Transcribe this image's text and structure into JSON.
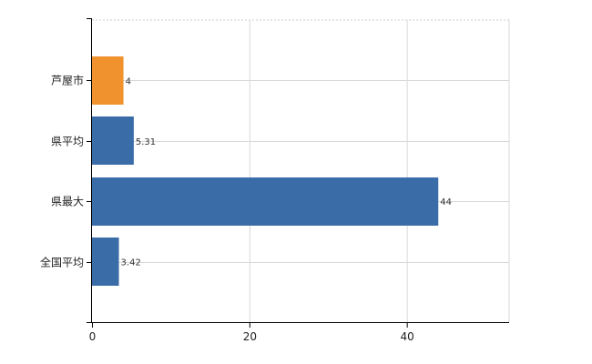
{
  "chart_data": {
    "type": "bar",
    "orientation": "horizontal",
    "categories": [
      "芦屋市",
      "県平均",
      "県最大",
      "全国平均"
    ],
    "values": [
      4,
      5.31,
      44,
      3.42
    ],
    "value_labels": [
      "4",
      "5.31",
      "44",
      "3.42"
    ],
    "bar_colors": [
      "#f0922e",
      "#3a6da8",
      "#3a6da8",
      "#3a6da8"
    ],
    "xlim": [
      0,
      53
    ],
    "xticks": [
      0,
      20,
      40
    ],
    "grid": true,
    "title": "",
    "xlabel": "",
    "ylabel": ""
  }
}
